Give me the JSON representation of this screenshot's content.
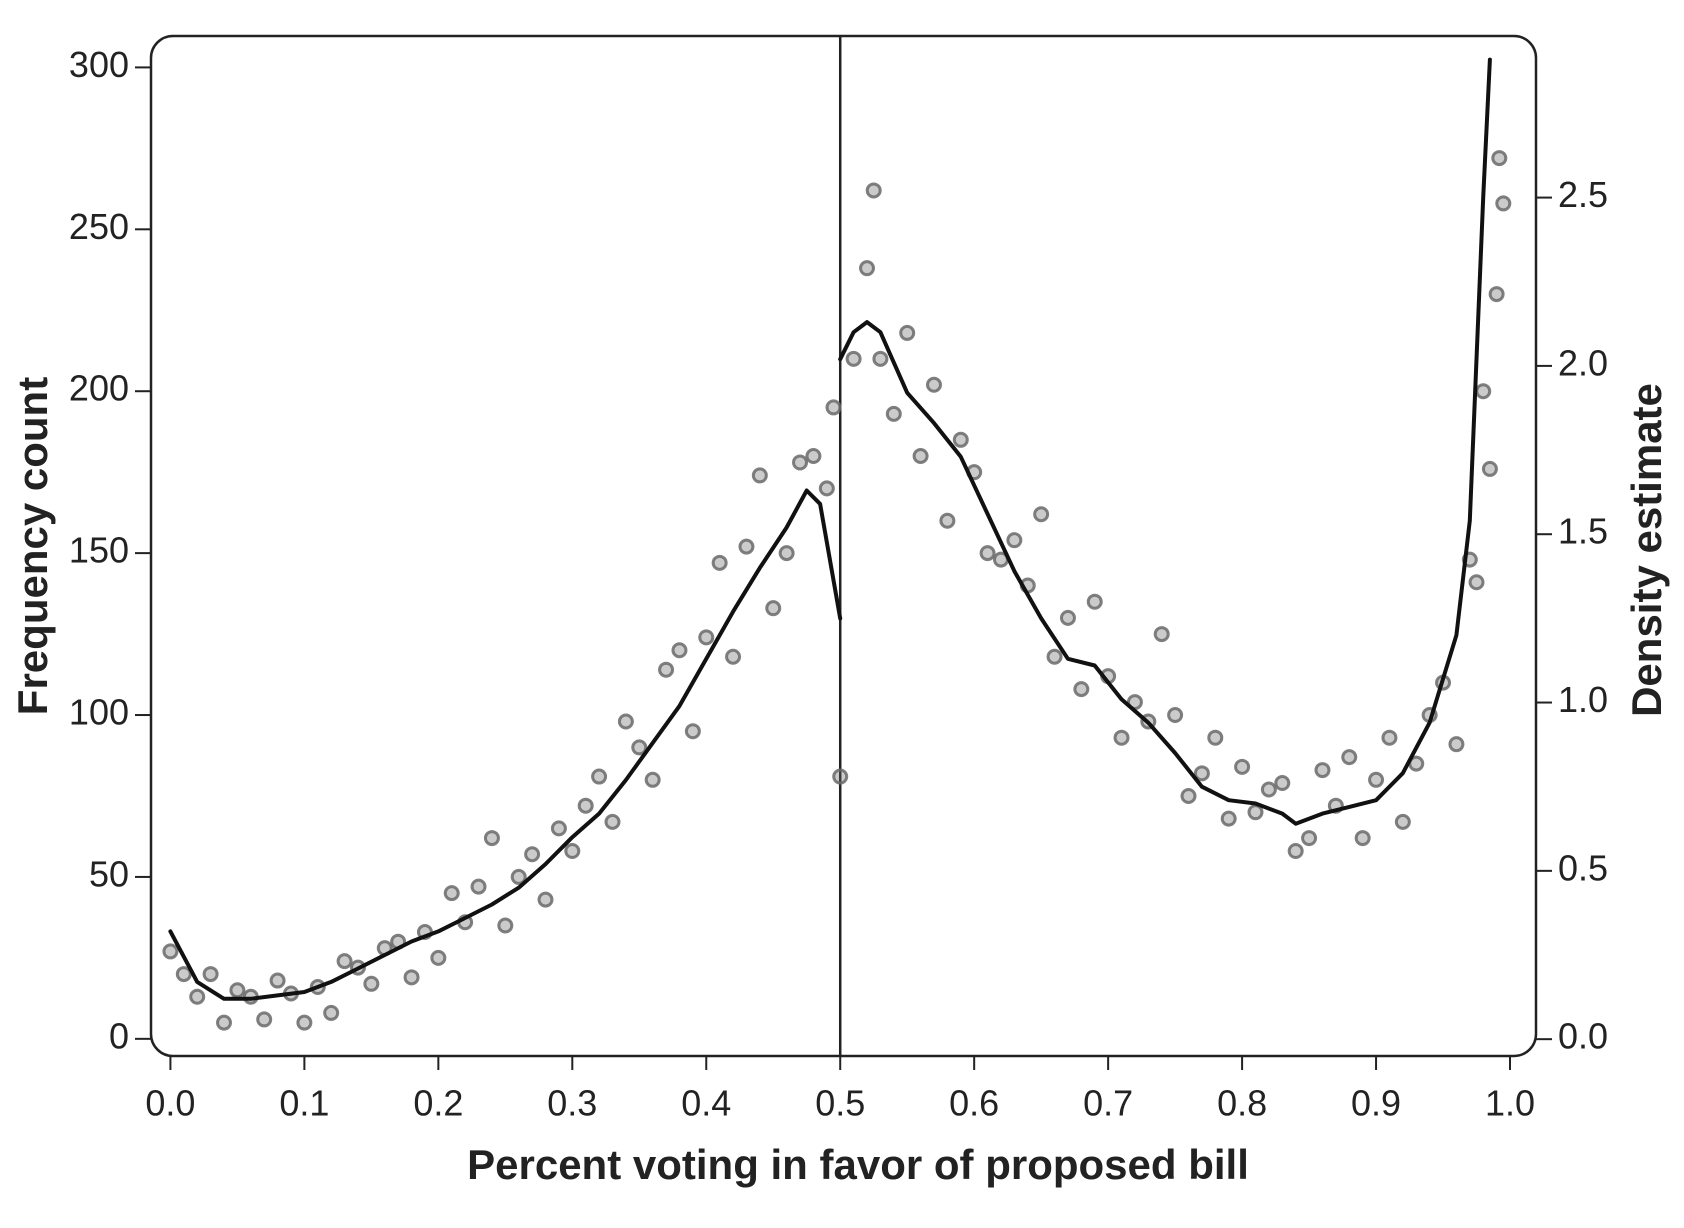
{
  "chart_data": {
    "type": "scatter",
    "x_label": "Percent voting in favor of proposed bill",
    "y_label": "Frequency count",
    "y2_label": "Density estimate",
    "xlim": [
      -0.0145,
      1.0194
    ],
    "ylim": [
      -5.3,
      309.7
    ],
    "y2lim": [
      -0.05,
      2.98
    ],
    "xticks": [
      {
        "value": 0,
        "label": "0.0"
      },
      0.1,
      0.2,
      0.3,
      0.4,
      0.5,
      0.6,
      0.7,
      0.8,
      0.9,
      {
        "value": 1,
        "label": "1.0"
      }
    ],
    "yticks": [
      0,
      50,
      100,
      150,
      200,
      250,
      300
    ],
    "y2ticks": [
      {
        "value": 0,
        "label": "0.0"
      },
      0.5,
      {
        "value": 1,
        "label": "1.0"
      },
      1.5,
      {
        "value": 2,
        "label": "2.0"
      },
      2.5
    ],
    "vline": 0.5,
    "series": [
      {
        "type": "scatter",
        "color": "#6a6a6a",
        "x": [
          0.0,
          0.01,
          0.02,
          0.03,
          0.04,
          0.05,
          0.06,
          0.07,
          0.08,
          0.09,
          0.1,
          0.11,
          0.12,
          0.13,
          0.14,
          0.15,
          0.16,
          0.17,
          0.18,
          0.19,
          0.2,
          0.21,
          0.22,
          0.23,
          0.24,
          0.25,
          0.26,
          0.27,
          0.28,
          0.29,
          0.3,
          0.31,
          0.32,
          0.33,
          0.34,
          0.35,
          0.36,
          0.37,
          0.38,
          0.39,
          0.4,
          0.41,
          0.42,
          0.43,
          0.44,
          0.45,
          0.46,
          0.47,
          0.48,
          0.49,
          0.495,
          0.5,
          0.51,
          0.52,
          0.525,
          0.53,
          0.54,
          0.55,
          0.56,
          0.57,
          0.58,
          0.59,
          0.6,
          0.61,
          0.62,
          0.63,
          0.64,
          0.65,
          0.66,
          0.67,
          0.68,
          0.69,
          0.7,
          0.71,
          0.72,
          0.73,
          0.74,
          0.75,
          0.76,
          0.77,
          0.78,
          0.79,
          0.8,
          0.81,
          0.82,
          0.83,
          0.84,
          0.85,
          0.86,
          0.87,
          0.88,
          0.89,
          0.9,
          0.91,
          0.92,
          0.93,
          0.94,
          0.95,
          0.96,
          0.97,
          0.975,
          0.98,
          0.985,
          0.99,
          0.992,
          0.995
        ],
        "values": [
          27,
          20,
          13,
          20,
          5,
          15,
          13,
          6,
          18,
          14,
          5,
          16,
          8,
          24,
          22,
          17,
          28,
          30,
          19,
          33,
          25,
          45,
          36,
          47,
          62,
          35,
          50,
          57,
          43,
          65,
          58,
          72,
          81,
          67,
          98,
          90,
          80,
          114,
          120,
          95,
          124,
          147,
          118,
          152,
          174,
          133,
          150,
          178,
          180,
          170,
          195,
          81,
          210,
          238,
          262,
          210,
          193,
          218,
          180,
          202,
          160,
          185,
          175,
          150,
          148,
          154,
          140,
          162,
          118,
          130,
          108,
          135,
          112,
          93,
          104,
          98,
          125,
          100,
          75,
          82,
          93,
          68,
          84,
          70,
          77,
          79,
          58,
          62,
          83,
          72,
          87,
          62,
          80,
          93,
          67,
          85,
          100,
          110,
          91,
          148,
          141,
          200,
          176,
          230,
          272,
          258
        ]
      },
      {
        "type": "line",
        "axis": "y2",
        "color": "#111111",
        "x": [
          0.0,
          0.02,
          0.04,
          0.06,
          0.08,
          0.1,
          0.12,
          0.14,
          0.16,
          0.18,
          0.2,
          0.22,
          0.24,
          0.26,
          0.28,
          0.3,
          0.32,
          0.34,
          0.36,
          0.38,
          0.4,
          0.42,
          0.44,
          0.46,
          0.475,
          0.485,
          0.5,
          0.5,
          0.5,
          0.51,
          0.52,
          0.53,
          0.55,
          0.57,
          0.59,
          0.61,
          0.63,
          0.65,
          0.67,
          0.69,
          0.71,
          0.73,
          0.75,
          0.77,
          0.79,
          0.81,
          0.83,
          0.84,
          0.86,
          0.88,
          0.9,
          0.92,
          0.94,
          0.96,
          0.97,
          0.98,
          0.985
        ],
        "values": [
          0.32,
          0.17,
          0.12,
          0.12,
          0.13,
          0.14,
          0.17,
          0.21,
          0.25,
          0.29,
          0.32,
          0.36,
          0.4,
          0.45,
          0.52,
          0.6,
          0.67,
          0.77,
          0.88,
          0.99,
          1.13,
          1.27,
          1.4,
          1.52,
          1.63,
          1.59,
          1.25,
          null,
          2.02,
          2.1,
          2.13,
          2.1,
          1.92,
          1.83,
          1.73,
          1.56,
          1.39,
          1.25,
          1.13,
          1.11,
          1.01,
          0.94,
          0.85,
          0.75,
          0.71,
          0.7,
          0.67,
          0.64,
          0.67,
          0.69,
          0.71,
          0.79,
          0.94,
          1.2,
          1.54,
          2.5,
          2.91
        ]
      }
    ]
  }
}
